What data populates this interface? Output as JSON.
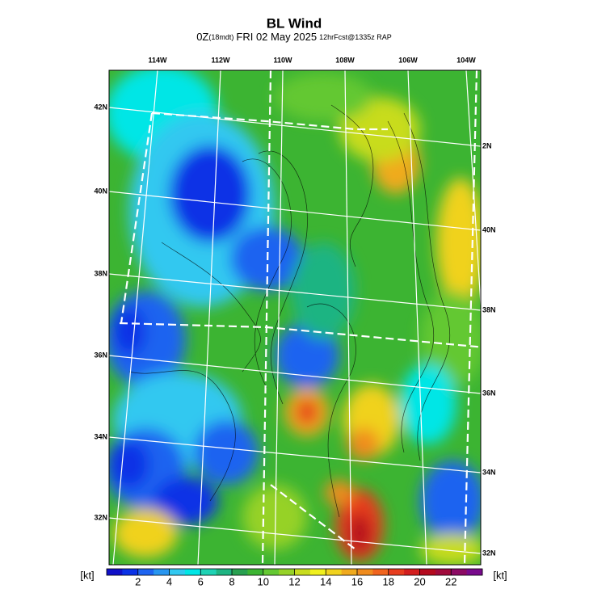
{
  "header": {
    "title": "BL Wind",
    "subtitle": [
      "0Z",
      "(18mdt)",
      "FRI 02 May 2025",
      "12hrFcst@1335z RAP"
    ]
  },
  "map": {
    "lon_labels": [
      "114W",
      "112W",
      "110W",
      "108W",
      "106W",
      "104W"
    ],
    "lat_labels_left": [
      "42N",
      "40N",
      "38N",
      "36N",
      "34N",
      "32N"
    ],
    "lat_labels_right": [
      "2N",
      "40N",
      "38N",
      "36N",
      "34N",
      "32N"
    ]
  },
  "colorbar": {
    "unit": "[kt]",
    "lim": [
      0,
      24
    ],
    "ticks": [
      2,
      4,
      6,
      8,
      10,
      12,
      14,
      16,
      18,
      20,
      22
    ],
    "colors": [
      "#1010c8",
      "#0a32e6",
      "#1e64f0",
      "#2896f0",
      "#32c8f0",
      "#00e6e6",
      "#1ed2b4",
      "#1eb482",
      "#28a050",
      "#3cb432",
      "#64c832",
      "#96d228",
      "#c8dc1e",
      "#f0f01e",
      "#f0d21e",
      "#f0aa1e",
      "#f08c1e",
      "#f0641e",
      "#e63c1e",
      "#d21e1e",
      "#b40a1e",
      "#a00a3c",
      "#8c0a64",
      "#780a8c"
    ]
  }
}
